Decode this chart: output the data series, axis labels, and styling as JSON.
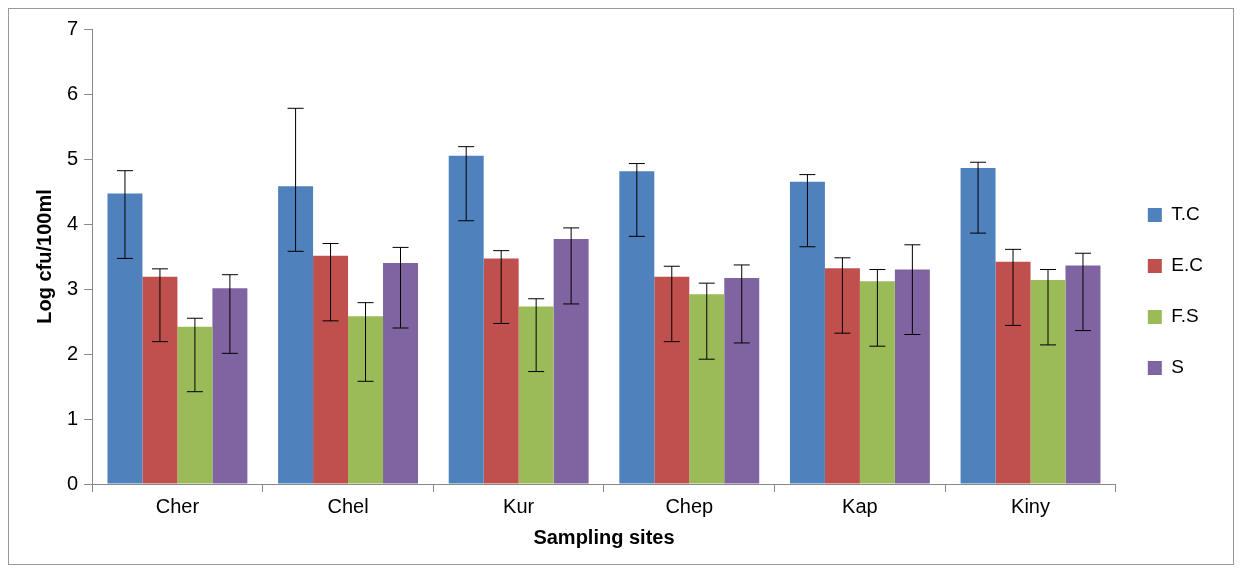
{
  "chart_data": {
    "type": "bar",
    "xlabel": "Sampling sites",
    "ylabel": "Log cfu/100ml",
    "categories": [
      "Cher",
      "Chel",
      "Kur",
      "Chep",
      "Kap",
      "Kiny"
    ],
    "series": [
      {
        "name": "T.C",
        "color": "#4f81bd",
        "values": [
          4.47,
          4.58,
          5.05,
          4.81,
          4.65,
          4.86
        ],
        "errors": [
          [
            3.47,
            4.82
          ],
          [
            3.58,
            5.78
          ],
          [
            4.05,
            5.19
          ],
          [
            3.81,
            4.93
          ],
          [
            3.65,
            4.76
          ],
          [
            3.86,
            4.95
          ]
        ]
      },
      {
        "name": "E.C",
        "color": "#c0504d",
        "values": [
          3.19,
          3.51,
          3.47,
          3.19,
          3.32,
          3.42
        ],
        "errors": [
          [
            2.19,
            3.31
          ],
          [
            2.51,
            3.7
          ],
          [
            2.47,
            3.59
          ],
          [
            2.19,
            3.35
          ],
          [
            2.32,
            3.48
          ],
          [
            2.44,
            3.61
          ]
        ]
      },
      {
        "name": "F.S",
        "color": "#9bbb59",
        "values": [
          2.42,
          2.58,
          2.73,
          2.92,
          3.12,
          3.14
        ],
        "errors": [
          [
            1.42,
            2.55
          ],
          [
            1.58,
            2.79
          ],
          [
            1.73,
            2.85
          ],
          [
            1.92,
            3.09
          ],
          [
            2.12,
            3.3
          ],
          [
            2.14,
            3.3
          ]
        ]
      },
      {
        "name": "S",
        "color": "#8064a2",
        "values": [
          3.01,
          3.4,
          3.77,
          3.17,
          3.3,
          3.36
        ],
        "errors": [
          [
            2.01,
            3.22
          ],
          [
            2.4,
            3.64
          ],
          [
            2.77,
            3.94
          ],
          [
            2.17,
            3.37
          ],
          [
            2.3,
            3.68
          ],
          [
            2.36,
            3.55
          ]
        ]
      }
    ],
    "ylim": [
      0,
      7
    ],
    "yticks": [
      0,
      1,
      2,
      3,
      4,
      5,
      6,
      7
    ],
    "legend": "right",
    "grid": false
  }
}
